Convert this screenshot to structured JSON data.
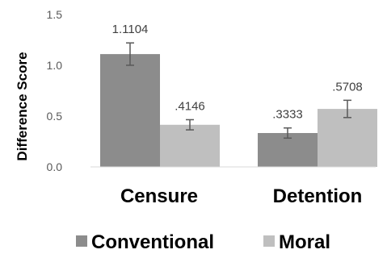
{
  "chart_data": {
    "type": "bar",
    "ylabel": "Difference Score",
    "ylim": [
      0,
      1.5
    ],
    "yticks": [
      "0.0",
      "0.5",
      "1.0",
      "1.5"
    ],
    "grid": false,
    "legend_position": "bottom",
    "categories": [
      "Censure",
      "Detention"
    ],
    "series": [
      {
        "name": "Conventional",
        "color": "#8c8c8c",
        "values": [
          1.1104,
          0.3333
        ],
        "labels": [
          "1.1104",
          ".3333"
        ],
        "error": [
          0.11,
          0.05
        ]
      },
      {
        "name": "Moral",
        "color": "#bfbfbf",
        "values": [
          0.4146,
          0.5708
        ],
        "labels": [
          ".4146",
          ".5708"
        ],
        "error": [
          0.05,
          0.085
        ]
      }
    ]
  }
}
